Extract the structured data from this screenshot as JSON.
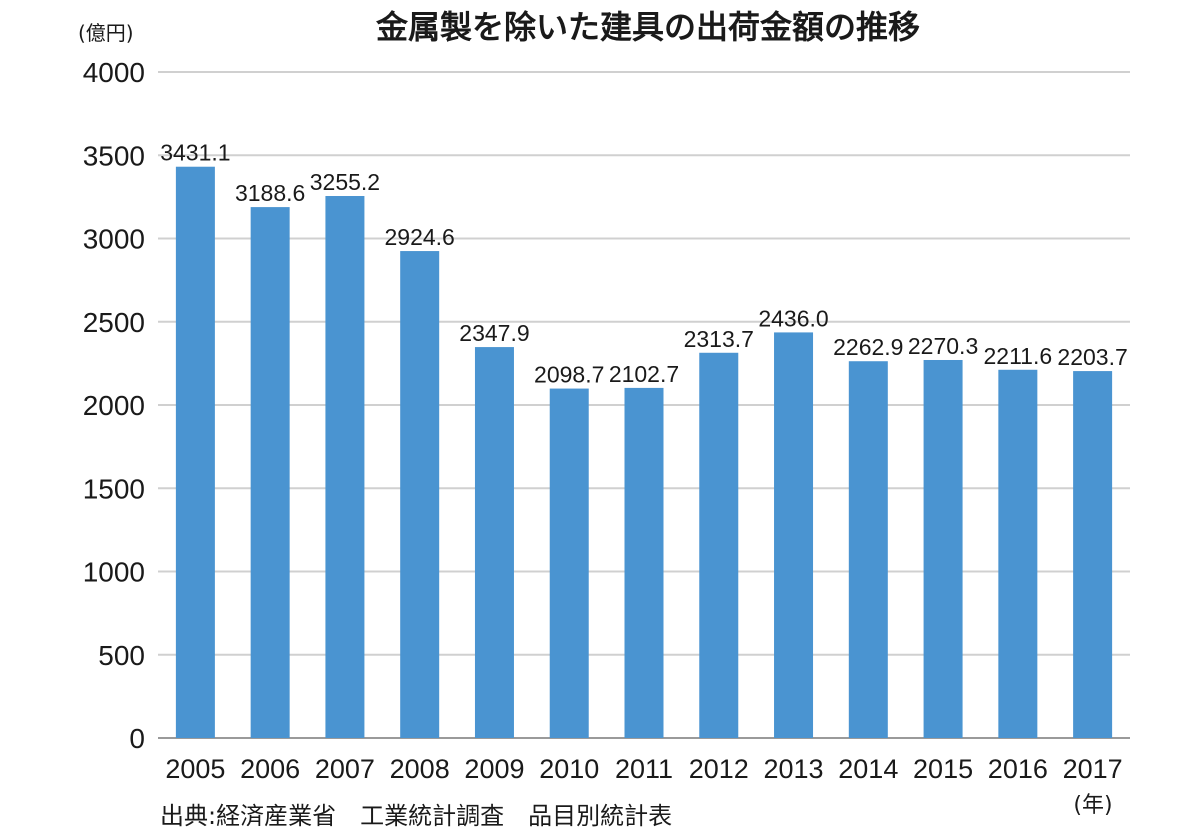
{
  "chart_data": {
    "type": "bar",
    "title": "金属製を除いた建具の出荷金額の推移",
    "ylabel": "(億円)",
    "xlabel": "(年)",
    "ylim": [
      0,
      4000
    ],
    "yticks": [
      "0",
      "500",
      "1000",
      "1500",
      "2000",
      "2500",
      "3000",
      "3500",
      "4000"
    ],
    "categories": [
      "2005",
      "2006",
      "2007",
      "2008",
      "2009",
      "2010",
      "2011",
      "2012",
      "2013",
      "2014",
      "2015",
      "2016",
      "2017"
    ],
    "values": [
      3431.1,
      3188.6,
      3255.2,
      2924.6,
      2347.9,
      2098.7,
      2102.7,
      2313.7,
      2436.0,
      2262.9,
      2270.3,
      2211.6,
      2203.7
    ],
    "value_labels": [
      "3431.1",
      "3188.6",
      "3255.2",
      "2924.6",
      "2347.9",
      "2098.7",
      "2102.7",
      "2313.7",
      "2436.0",
      "2262.9",
      "2270.3",
      "2211.6",
      "2203.7"
    ],
    "grid": true,
    "legend": "none",
    "source": "出典:経済産業省　工業統計調査　品目別統計表",
    "colors": {
      "bar": "#4a94d1",
      "grid": "#d0d0d0",
      "text": "#1a1a1a"
    }
  }
}
